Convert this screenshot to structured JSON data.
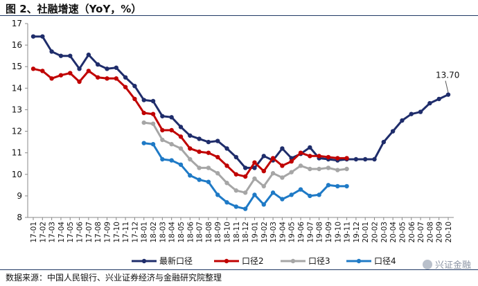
{
  "page": {
    "title": "图 2、社融增速（YoY，%）",
    "source": "数据来源：中国人民银行、兴业证券经济与金融研究院整理",
    "brand": "兴证金融"
  },
  "chart_data": {
    "type": "line",
    "title": "图 2、社融增速（YoY，%）",
    "xlabel": "",
    "ylabel": "",
    "ylim": [
      8,
      17
    ],
    "yticks": [
      8,
      9,
      10,
      11,
      12,
      13,
      14,
      15,
      16,
      17
    ],
    "grid": false,
    "legend_position": "bottom",
    "x": [
      "17-01",
      "17-02",
      "17-03",
      "17-04",
      "17-05",
      "17-06",
      "17-07",
      "17-08",
      "17-09",
      "17-10",
      "17-11",
      "17-12",
      "18-01",
      "18-02",
      "18-03",
      "18-04",
      "18-05",
      "18-06",
      "18-07",
      "18-08",
      "18-09",
      "18-10",
      "18-11",
      "18-12",
      "19-01",
      "19-02",
      "19-03",
      "19-04",
      "19-05",
      "19-06",
      "19-07",
      "19-08",
      "19-09",
      "19-10",
      "19-11",
      "19-12",
      "20-01",
      "20-02",
      "20-03",
      "20-04",
      "20-05",
      "20-06",
      "20-07",
      "20-08",
      "20-09",
      "20-10"
    ],
    "x_tick_labels": [
      "17-01",
      "17-02",
      "17-03",
      "17-04",
      "17-05",
      "17-06",
      "17-07",
      "17-08",
      "17-09",
      "17-10",
      "17-11",
      "17-12",
      "18-01",
      "18-02",
      "18-03",
      "18-04",
      "18-05",
      "18-06",
      "18-07",
      "18-08",
      "18-09",
      "18-10",
      "18-11",
      "18-12",
      "19-01",
      "19-02",
      "19-03",
      "19-04",
      "19-05",
      "19-06",
      "19-07",
      "19-08",
      "19-09",
      "19-10",
      "19-11",
      "19-12",
      "20-01",
      "20-02",
      "20-03",
      "20-04",
      "20-05",
      "20-06",
      "20-07",
      "20-08",
      "20-09",
      "20-10"
    ],
    "series": [
      {
        "name": "最新口径",
        "color": "#1f2d6b",
        "values": [
          16.4,
          16.4,
          15.7,
          15.5,
          15.5,
          14.9,
          15.55,
          15.1,
          14.9,
          14.95,
          14.5,
          14.1,
          13.45,
          13.4,
          12.7,
          12.65,
          12.2,
          11.8,
          11.65,
          11.5,
          11.55,
          11.2,
          10.8,
          10.3,
          10.3,
          10.85,
          10.65,
          11.2,
          10.75,
          10.95,
          11.25,
          10.75,
          10.7,
          10.65,
          10.7,
          10.7,
          10.7,
          10.7,
          11.5,
          12.0,
          12.5,
          12.8,
          12.9,
          13.3,
          13.5,
          13.7
        ]
      },
      {
        "name": "口径2",
        "color": "#c00000",
        "values": [
          14.9,
          14.8,
          14.45,
          14.6,
          14.7,
          14.3,
          14.8,
          14.5,
          14.45,
          14.45,
          14.05,
          13.5,
          12.85,
          12.8,
          12.05,
          12.05,
          11.75,
          11.2,
          11.05,
          11.0,
          10.8,
          10.4,
          10.0,
          9.9,
          10.55,
          10.15,
          10.75,
          10.4,
          10.6,
          11.0,
          10.85,
          10.85,
          10.8,
          10.75,
          10.75,
          null,
          null,
          null,
          null,
          null,
          null,
          null,
          null,
          null,
          null,
          null
        ]
      },
      {
        "name": "口径3",
        "color": "#a6a6a6",
        "values": [
          null,
          null,
          null,
          null,
          null,
          null,
          null,
          null,
          null,
          null,
          null,
          null,
          12.4,
          12.35,
          11.6,
          11.4,
          11.2,
          10.7,
          10.3,
          10.3,
          10.05,
          9.6,
          9.25,
          9.15,
          9.8,
          9.45,
          10.05,
          9.85,
          10.1,
          10.4,
          10.25,
          10.25,
          10.3,
          10.2,
          10.25,
          null,
          null,
          null,
          null,
          null,
          null,
          null,
          null,
          null,
          null,
          null
        ]
      },
      {
        "name": "口径4",
        "color": "#1f7ac6",
        "values": [
          null,
          null,
          null,
          null,
          null,
          null,
          null,
          null,
          null,
          null,
          null,
          null,
          11.45,
          11.4,
          10.7,
          10.65,
          10.45,
          9.95,
          9.75,
          9.65,
          9.05,
          8.7,
          8.5,
          8.4,
          9.05,
          8.6,
          9.15,
          8.85,
          9.05,
          9.3,
          9.0,
          9.05,
          9.5,
          9.45,
          9.45,
          null,
          null,
          null,
          null,
          null,
          null,
          null,
          null,
          null,
          null,
          null
        ]
      }
    ],
    "annotations": [
      {
        "series": "最新口径",
        "x": "20-10",
        "text": "13.70"
      }
    ]
  }
}
